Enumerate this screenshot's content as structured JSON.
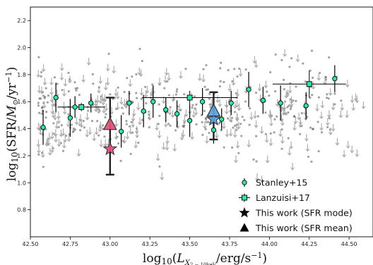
{
  "chart_data": {
    "type": "scatter",
    "title": "",
    "xlabel": "log₁₀(L_X,2−10keV/erg/s⁻¹)",
    "ylabel": "log₁₀(SFR/M⊙/yr⁻¹)",
    "xlim": [
      42.5,
      44.65
    ],
    "ylim": [
      0.6,
      2.3
    ],
    "xticks": [
      "42.50",
      "42.75",
      "43.00",
      "43.25",
      "43.50",
      "43.75",
      "44.00",
      "44.25",
      "44.50"
    ],
    "yticks": [
      "0.8",
      "1.0",
      "1.2",
      "1.4",
      "1.6",
      "1.8",
      "2.0",
      "2.2"
    ],
    "legend_position": "lower-right",
    "series": [
      {
        "name": "Stanley+15",
        "marker": "circle",
        "color": "#2ee6a0",
        "points": [
          {
            "x": 42.58,
            "y": 1.41,
            "yerr": 0.13
          },
          {
            "x": 42.66,
            "y": 1.63,
            "yerr": 0.11
          },
          {
            "x": 42.75,
            "y": 1.48,
            "yerr": 0.14
          },
          {
            "x": 42.78,
            "y": 1.56,
            "yerr": 0.08
          },
          {
            "x": 42.88,
            "y": 1.59,
            "yerr": 0.07
          },
          {
            "x": 43.07,
            "y": 1.38,
            "yerr": 0.12
          },
          {
            "x": 43.12,
            "y": 1.59,
            "yerr": 0.09
          },
          {
            "x": 43.21,
            "y": 1.53,
            "yerr": 0.12
          },
          {
            "x": 43.27,
            "y": 1.6,
            "yerr": 0.12
          },
          {
            "x": 43.35,
            "y": 1.54,
            "yerr": 0.09
          },
          {
            "x": 43.42,
            "y": 1.51,
            "yerr": 0.1
          },
          {
            "x": 43.5,
            "y": 1.46,
            "yerr": 0.12
          },
          {
            "x": 43.58,
            "y": 1.6,
            "yerr": 0.1
          },
          {
            "x": 43.65,
            "y": 1.39,
            "yerr": 0.1
          },
          {
            "x": 43.7,
            "y": 1.47,
            "yerr": 0.08
          },
          {
            "x": 43.76,
            "y": 1.59,
            "yerr": 0.09
          },
          {
            "x": 43.87,
            "y": 1.69,
            "yerr": 0.13
          },
          {
            "x": 43.96,
            "y": 1.61,
            "yerr": 0.1
          },
          {
            "x": 44.07,
            "y": 1.59,
            "yerr": 0.13
          },
          {
            "x": 44.23,
            "y": 1.57,
            "yerr": 0.1
          },
          {
            "x": 44.41,
            "y": 1.77,
            "yerr": 0.1
          }
        ]
      },
      {
        "name": "Lanzuisi+17",
        "marker": "square",
        "color": "#2ee6a0",
        "points": [
          {
            "x": 42.82,
            "y": 1.56,
            "xerr": 0.15,
            "yerr": 0.03
          },
          {
            "x": 43.5,
            "y": 1.63,
            "xerr": 0.3,
            "yerr": 0.05
          },
          {
            "x": 44.25,
            "y": 1.73,
            "xerr": 0.23,
            "yerr": 0.1
          }
        ]
      },
      {
        "name": "This work (SFR mode)",
        "marker": "star",
        "points": [
          {
            "x": 43.0,
            "y": 1.25,
            "color": "#e0547a"
          },
          {
            "x": 43.65,
            "y": 1.47,
            "color": "#5aa2e0"
          }
        ]
      },
      {
        "name": "This work (SFR mean)",
        "marker": "triangle",
        "points": [
          {
            "x": 43.0,
            "y": 1.43,
            "yerr_low": 0.37,
            "yerr_high": 0.2,
            "color": "#e0547a"
          },
          {
            "x": 43.65,
            "y": 1.53,
            "yerr_low": 0.21,
            "yerr_high": 0.14,
            "color": "#5aa2e0"
          }
        ]
      }
    ],
    "background": {
      "description_only": false,
      "gray_points_color": "#555555",
      "upper_limit_color": "#9e9e9e"
    }
  }
}
